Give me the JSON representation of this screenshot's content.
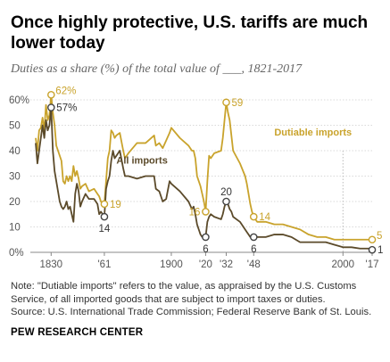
{
  "title": "Once highly protective, U.S. tariffs are much lower today",
  "subtitle": "Duties as a share (%) of the total value of ___, 1821-2017",
  "note": "Note: \"Dutiable imports\" refers to the value, as appraised by the U.S. Customs Service, of all imported goods that are subject to import taxes or duties.",
  "source": "Source: U.S. International Trade Commission; Federal Reserve Bank of St. Louis.",
  "brand": "PEW RESEARCH CENTER",
  "colors": {
    "dutiable": "#c9a32c",
    "all": "#5b4a2a",
    "grid": "#d9d9d9",
    "axis": "#888888"
  },
  "chart_data": {
    "type": "line",
    "title": "Once highly protective, U.S. tariffs are much lower today",
    "subtitle": "Duties as a share (%) of the total value of ___, 1821-2017",
    "xlim": [
      1821,
      2017
    ],
    "ylim": [
      0,
      60
    ],
    "yticks": [
      0,
      10,
      20,
      30,
      40,
      50,
      60
    ],
    "ytick_labels": [
      "0%",
      "10",
      "20",
      "30",
      "40",
      "50",
      "60%"
    ],
    "xticks": [
      1830,
      1861,
      1900,
      1920,
      1932,
      1948,
      2000,
      2017
    ],
    "xtick_labels": [
      "1830",
      "'61",
      "1900",
      "'20",
      "'32",
      "'48",
      "2000",
      "'17"
    ],
    "grid": true,
    "series": [
      {
        "name": "Dutiable imports",
        "color": "#c9a32c",
        "x": [
          1821,
          1822,
          1823,
          1824,
          1825,
          1826,
          1827,
          1828,
          1829,
          1830,
          1831,
          1832,
          1833,
          1834,
          1835,
          1836,
          1837,
          1838,
          1839,
          1840,
          1841,
          1842,
          1843,
          1844,
          1845,
          1846,
          1847,
          1848,
          1850,
          1852,
          1855,
          1857,
          1858,
          1859,
          1860,
          1861,
          1862,
          1863,
          1864,
          1865,
          1866,
          1867,
          1868,
          1870,
          1872,
          1873,
          1875,
          1880,
          1885,
          1890,
          1891,
          1893,
          1895,
          1897,
          1899,
          1900,
          1905,
          1910,
          1912,
          1913,
          1914,
          1915,
          1916,
          1917,
          1918,
          1919,
          1920,
          1921,
          1922,
          1923,
          1925,
          1929,
          1930,
          1931,
          1932,
          1933,
          1934,
          1935,
          1936,
          1940,
          1943,
          1944,
          1945,
          1946,
          1947,
          1948,
          1950,
          1955,
          1960,
          1965,
          1970,
          1975,
          1980,
          1985,
          1990,
          1995,
          2000,
          2005,
          2010,
          2015,
          2017
        ],
        "values": [
          45,
          40,
          48,
          49,
          53,
          48,
          58,
          52,
          54,
          62,
          55,
          50,
          42,
          40,
          38,
          36,
          28,
          27,
          30,
          28,
          30,
          28,
          34,
          30,
          32,
          29,
          25,
          26,
          27,
          24,
          25,
          23,
          22,
          20,
          19,
          19,
          28,
          37,
          40,
          48,
          47,
          45,
          46,
          47,
          40,
          37,
          39,
          43,
          43,
          46,
          42,
          43,
          41,
          44,
          47,
          49,
          45,
          42,
          40,
          40,
          37,
          30,
          28,
          26,
          23,
          20,
          16,
          28,
          38,
          37,
          39,
          40,
          45,
          52,
          59,
          55,
          52,
          46,
          40,
          35,
          30,
          27,
          23,
          19,
          16,
          14,
          12,
          12,
          11,
          11,
          10,
          9,
          7,
          6,
          6,
          5,
          5,
          5,
          5,
          5,
          5
        ]
      },
      {
        "name": "All imports",
        "color": "#5b4a2a",
        "x": [
          1821,
          1822,
          1823,
          1824,
          1825,
          1826,
          1827,
          1828,
          1829,
          1830,
          1831,
          1832,
          1833,
          1834,
          1835,
          1836,
          1837,
          1838,
          1839,
          1840,
          1841,
          1842,
          1843,
          1844,
          1845,
          1846,
          1847,
          1848,
          1850,
          1852,
          1855,
          1857,
          1858,
          1859,
          1860,
          1861,
          1862,
          1863,
          1864,
          1865,
          1866,
          1867,
          1868,
          1870,
          1872,
          1873,
          1875,
          1880,
          1885,
          1890,
          1891,
          1893,
          1895,
          1897,
          1899,
          1900,
          1905,
          1910,
          1912,
          1913,
          1914,
          1915,
          1916,
          1917,
          1918,
          1919,
          1920,
          1921,
          1922,
          1923,
          1925,
          1929,
          1930,
          1931,
          1932,
          1933,
          1934,
          1935,
          1936,
          1940,
          1943,
          1944,
          1945,
          1946,
          1947,
          1948,
          1950,
          1955,
          1960,
          1965,
          1970,
          1975,
          1980,
          1985,
          1990,
          1995,
          2000,
          2005,
          2010,
          2015,
          2017
        ],
        "values": [
          43,
          35,
          40,
          45,
          50,
          45,
          52,
          48,
          50,
          57,
          40,
          32,
          28,
          24,
          20,
          18,
          17,
          18,
          20,
          17,
          18,
          15,
          12,
          23,
          27,
          24,
          18,
          20,
          23,
          21,
          21,
          19,
          15,
          16,
          15,
          14,
          25,
          28,
          30,
          36,
          40,
          37,
          38,
          40,
          33,
          30,
          30,
          29,
          30,
          30,
          25,
          24,
          20,
          21,
          28,
          27,
          24,
          20,
          17,
          18,
          15,
          11,
          9,
          7,
          6,
          6,
          6,
          12,
          14,
          15,
          14,
          13,
          15,
          18,
          20,
          19,
          17,
          16,
          14,
          12,
          9,
          8,
          7,
          6,
          6,
          6,
          6,
          6,
          7,
          7,
          6,
          4,
          4,
          4,
          4,
          3,
          2,
          2,
          1.5,
          1.5,
          1
        ]
      }
    ],
    "series_labels": [
      {
        "series": "Dutiable imports",
        "text": "Dutiable imports",
        "x": 1960,
        "y": 46
      },
      {
        "series": "All imports",
        "text": "All imports",
        "x": 1868,
        "y": 35
      }
    ],
    "annotations": [
      {
        "series": "Dutiable imports",
        "x": 1830,
        "y": 62,
        "label": "62%",
        "pos": "right-up"
      },
      {
        "series": "All imports",
        "x": 1830,
        "y": 57,
        "label": "57%",
        "pos": "right"
      },
      {
        "series": "Dutiable imports",
        "x": 1861,
        "y": 19,
        "label": "19",
        "pos": "right"
      },
      {
        "series": "All imports",
        "x": 1861,
        "y": 14,
        "label": "14",
        "pos": "below"
      },
      {
        "series": "Dutiable imports",
        "x": 1920,
        "y": 16,
        "label": "16",
        "pos": "left"
      },
      {
        "series": "All imports",
        "x": 1920,
        "y": 6,
        "label": "6",
        "pos": "below"
      },
      {
        "series": "Dutiable imports",
        "x": 1932,
        "y": 59,
        "label": "59",
        "pos": "right"
      },
      {
        "series": "All imports",
        "x": 1932,
        "y": 20,
        "label": "20",
        "pos": "above"
      },
      {
        "series": "Dutiable imports",
        "x": 1948,
        "y": 14,
        "label": "14",
        "pos": "right"
      },
      {
        "series": "All imports",
        "x": 1948,
        "y": 6,
        "label": "6",
        "pos": "below"
      },
      {
        "series": "Dutiable imports",
        "x": 2017,
        "y": 5,
        "label": "5",
        "pos": "right-up"
      },
      {
        "series": "All imports",
        "x": 2017,
        "y": 1,
        "label": "1",
        "pos": "right"
      }
    ]
  }
}
